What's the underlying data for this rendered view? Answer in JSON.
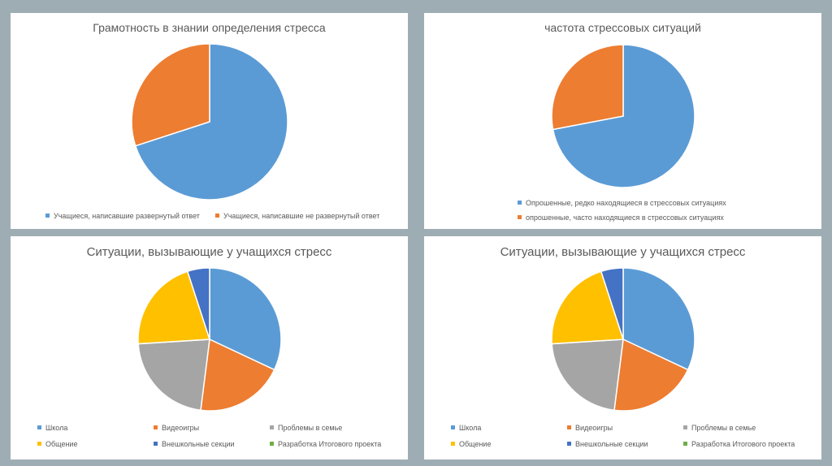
{
  "colors": {
    "blue": "#5b9bd5",
    "orange": "#ed7d31",
    "gray": "#a5a5a5",
    "yellow": "#ffc000",
    "darkblue": "#4472c4",
    "green": "#70ad47"
  },
  "chart_data": [
    {
      "type": "pie",
      "title": "Грамотность в знании определения стресса",
      "categories": [
        "Учащиеся, написавшие развернутый ответ",
        "Учащиеся, написавшие не развернутый ответ"
      ],
      "values": [
        70,
        30
      ],
      "colors": [
        "#5b9bd5",
        "#ed7d31"
      ]
    },
    {
      "type": "pie",
      "title": "частота стрессовых ситуаций",
      "categories": [
        "Опрошенные, редко находящиеся в стрессовых ситуациях",
        "опрошенные, часто находящиеся в стрессовых ситуациях"
      ],
      "values": [
        72,
        28
      ],
      "colors": [
        "#5b9bd5",
        "#ed7d31"
      ]
    },
    {
      "type": "pie",
      "title": "Ситуации, вызывающие у учащихся стресс",
      "categories": [
        "Школа",
        "Видеоигры",
        "Проблемы в семье",
        "Общение",
        "Внешкольные секции",
        "Разработка Итогового проекта"
      ],
      "values": [
        32,
        20,
        22,
        21,
        5,
        0
      ],
      "colors": [
        "#5b9bd5",
        "#ed7d31",
        "#a5a5a5",
        "#ffc000",
        "#4472c4",
        "#70ad47"
      ]
    },
    {
      "type": "pie",
      "title": "Ситуации, вызывающие у учащихся стресс",
      "categories": [
        "Школа",
        "Видеоигры",
        "Проблемы в семье",
        "Общение",
        "Внешкольные секции",
        "Разработка Итогового проекта"
      ],
      "values": [
        32,
        20,
        22,
        21,
        5,
        0
      ],
      "colors": [
        "#5b9bd5",
        "#ed7d31",
        "#a5a5a5",
        "#ffc000",
        "#4472c4",
        "#70ad47"
      ]
    }
  ]
}
